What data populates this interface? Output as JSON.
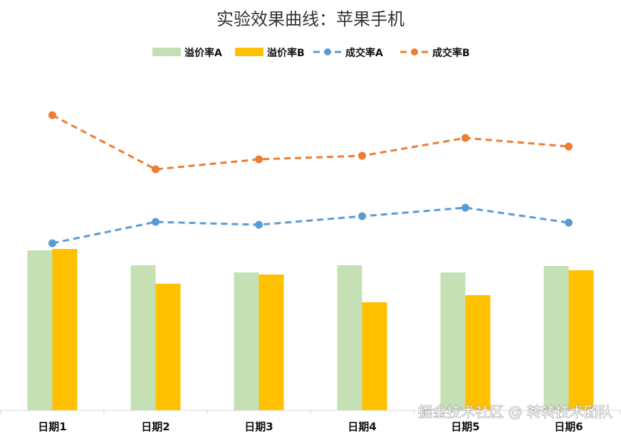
{
  "chart_data": {
    "type": "bar",
    "title": "实验效果曲线：苹果手机",
    "categories": [
      "日期1",
      "日期2",
      "日期3",
      "日期4",
      "日期5",
      "日期6"
    ],
    "ylim": [
      0,
      480
    ],
    "grid": false,
    "legend_position": "top",
    "series": [
      {
        "name": "溢价率A",
        "type": "bar",
        "color": "#C5E0B4",
        "values": [
          225,
          204,
          194,
          204,
          194,
          203
        ]
      },
      {
        "name": "溢价率B",
        "type": "bar",
        "color": "#FFC000",
        "values": [
          227,
          178,
          191,
          152,
          162,
          197
        ]
      },
      {
        "name": "成交率A",
        "type": "line",
        "color": "#5B9BD5",
        "values": [
          235,
          265,
          261,
          273,
          285,
          264
        ]
      },
      {
        "name": "成交率B",
        "type": "line",
        "color": "#ED7D31",
        "values": [
          415,
          339,
          353,
          358,
          383,
          371
        ]
      }
    ]
  },
  "watermark": "掘金技术社区 @ 转转技术团队"
}
